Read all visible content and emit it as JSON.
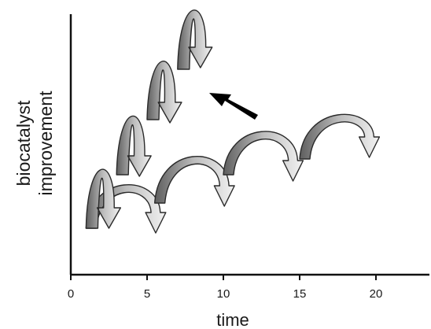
{
  "figure": {
    "ylabel_line1": "biocatalyst",
    "ylabel_line2": "improvement",
    "xlabel": "time"
  },
  "axis": {
    "x_ticks": [
      "0",
      "5",
      "10",
      "15",
      "20"
    ],
    "x_tick_values": [
      0,
      5,
      10,
      15,
      20
    ],
    "x_range": [
      0,
      23.5
    ]
  },
  "arcs": {
    "steep_path": [
      {
        "x_start": 1,
        "x_end": 3
      },
      {
        "x_start": 3,
        "x_end": 5
      },
      {
        "x_start": 5,
        "x_end": 7
      },
      {
        "x_start": 7,
        "x_end": 9
      }
    ],
    "gradual_path": [
      {
        "x_start": 1,
        "x_end": 6
      },
      {
        "x_start": 5.5,
        "x_end": 10.5
      },
      {
        "x_start": 10,
        "x_end": 15
      },
      {
        "x_start": 15,
        "x_end": 20
      }
    ]
  },
  "colors": {
    "axis": "#111111",
    "arrow_fill_light": "#e6e6e6",
    "arrow_fill_dark": "#6e6e6e",
    "arrow_stroke": "#2a2a2a",
    "pointer": "#000000"
  }
}
